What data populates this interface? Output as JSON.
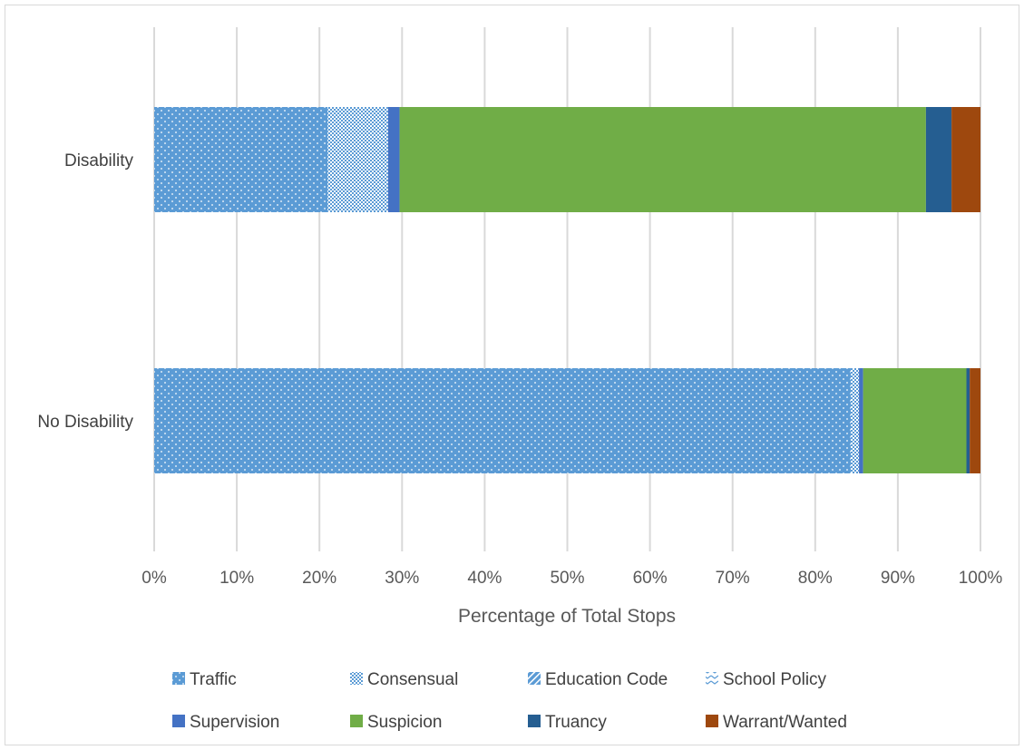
{
  "chart_data": {
    "type": "bar",
    "orientation": "horizontal",
    "stacked": true,
    "percent_stacked": true,
    "categories": [
      "Disability",
      "No Disability"
    ],
    "series": [
      {
        "name": "Traffic",
        "color": "#5B9BD5",
        "pattern": "dots",
        "values": [
          21.0,
          84.3
        ]
      },
      {
        "name": "Consensual",
        "color": "#5B9BD5",
        "pattern": "checker",
        "values": [
          7.3,
          1.0
        ]
      },
      {
        "name": "Education Code",
        "color": "#5B9BD5",
        "pattern": "diagonal",
        "values": [
          0.0,
          0.0
        ]
      },
      {
        "name": "School Policy",
        "color": "#5B9BD5",
        "pattern": "chevron",
        "values": [
          0.0,
          0.0
        ]
      },
      {
        "name": "Supervision",
        "color": "#4472C4",
        "pattern": "solid",
        "values": [
          1.4,
          0.5
        ]
      },
      {
        "name": "Suspicion",
        "color": "#70AD47",
        "pattern": "solid",
        "values": [
          63.7,
          12.5
        ]
      },
      {
        "name": "Truancy",
        "color": "#255E91",
        "pattern": "solid",
        "values": [
          3.1,
          0.4
        ]
      },
      {
        "name": "Warrant/Wanted",
        "color": "#9E480E",
        "pattern": "solid",
        "values": [
          3.5,
          1.3
        ]
      }
    ],
    "xlabel": "Percentage of Total Stops",
    "ylabel": "",
    "xlim": [
      0,
      100
    ],
    "xticks": [
      "0%",
      "10%",
      "20%",
      "30%",
      "40%",
      "50%",
      "60%",
      "70%",
      "80%",
      "90%",
      "100%"
    ],
    "grid": true,
    "legend_position": "bottom"
  }
}
